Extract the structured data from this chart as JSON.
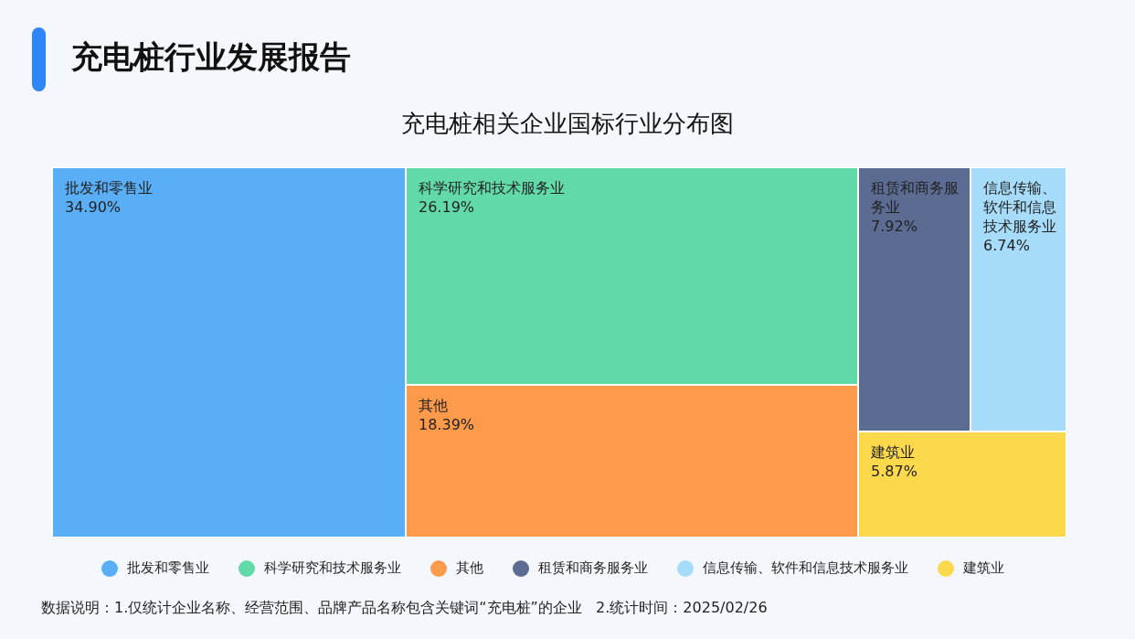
{
  "chart_data": {
    "type": "other",
    "title": "充电桩行业发展报告",
    "subtitle": "充电桩相关企业国标行业分布图",
    "series": [
      {
        "name": "批发和零售业",
        "color": "#5aaef5",
        "values": [
          34.9
        ],
        "value_labels": [
          "34.90%"
        ]
      },
      {
        "name": "科学研究和技术服务业",
        "color": "#62d9a9",
        "values": [
          26.19
        ],
        "value_labels": [
          "26.19%"
        ]
      },
      {
        "name": "其他",
        "color": "#fd9a4b",
        "values": [
          18.39
        ],
        "value_labels": [
          "18.39%"
        ]
      },
      {
        "name": "租赁和商务服务业",
        "color": "#5b6b92",
        "values": [
          7.92
        ],
        "value_labels": [
          "7.92%"
        ]
      },
      {
        "name": "信息传输、软件和信息技术服务业",
        "color": "#a6dcfa",
        "values": [
          6.74
        ],
        "value_labels": [
          "6.74%"
        ]
      },
      {
        "name": "建筑业",
        "color": "#fcd84c",
        "values": [
          5.87
        ],
        "value_labels": [
          "5.87%"
        ]
      }
    ],
    "legend": "bottom",
    "annotations": [
      "数据说明：1.仅统计企业名称、经营范围、品牌产品名称包含关键词“充电桩”的企业   2.统计时间：2025/02/26"
    ]
  }
}
